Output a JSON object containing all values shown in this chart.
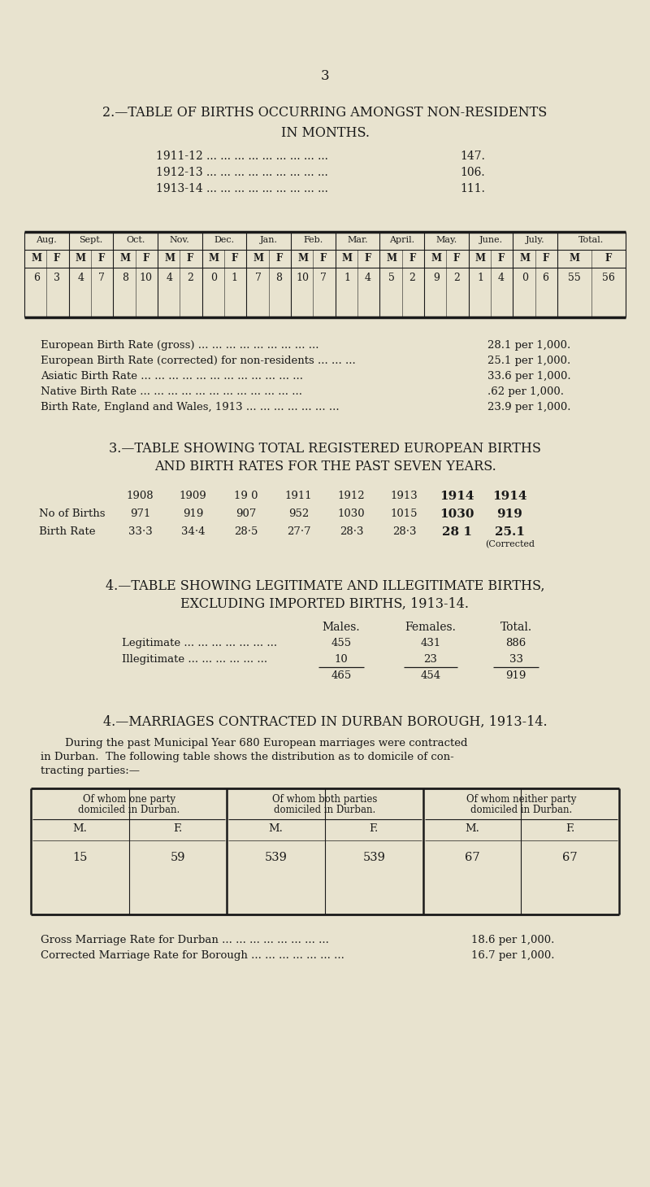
{
  "bg_color": "#e8e3cf",
  "text_color": "#1a1a1a",
  "page_number": "3",
  "section2_title1": "2.—TABLE OF BIRTHS OCCURRING AMONGST NON-RESIDENTS",
  "section2_title2": "IN MONTHS.",
  "years_list": [
    {
      "year": "1911-12 ... ... ... ... ... ... ... ... ...",
      "value": "147."
    },
    {
      "year": "1912-13 ... ... ... ... ... ... ... ... ...",
      "value": "106."
    },
    {
      "year": "1913-14 ... ... ... ... ... ... ... ... ...",
      "value": "111."
    }
  ],
  "table1_headers": [
    "Aug.",
    "Sept.",
    "Oct.",
    "Nov.",
    "Dec.",
    "Jan.",
    "Feb.",
    "Mar.",
    "April.",
    "May.",
    "June.",
    "July.",
    "Total."
  ],
  "table1_data": [
    "6",
    "3",
    "4",
    "7",
    "8",
    "10",
    "4",
    "2",
    "0",
    "1",
    "7",
    "8",
    "10",
    "7",
    "1",
    "4",
    "5",
    "2",
    "9",
    "2",
    "1",
    "4",
    "0",
    "6",
    "55",
    "56"
  ],
  "birth_rates": [
    {
      "label": "European Birth Rate (gross) ... ... ... ... ... ... ... ... ...",
      "value": "28.1 per 1,000."
    },
    {
      "label": "European Birth Rate (corrected) for non-residents ... ... ...",
      "value": "25.1 per 1,000."
    },
    {
      "label": "Asiatic Birth Rate ... ... ... ... ... ... ... ... ... ... ... ...",
      "value": "33.6 per 1,000."
    },
    {
      "label": "Native Birth Rate ... ... ... ... ... ... ... ... ... ... ... ...",
      "value": ".62 per 1,000."
    },
    {
      "label": "Birth Rate, England and Wales, 1913 ... ... ... ... ... ... ...",
      "value": "23.9 per 1,000."
    }
  ],
  "section3_title1": "3.—TABLE SHOWING TOTAL REGISTERED EUROPEAN BIRTHS",
  "section3_title2": "AND BIRTH RATES FOR THE PAST SEVEN YEARS.",
  "table2_years": [
    "1908",
    "1909",
    "19 0",
    "1911",
    "1912",
    "1913",
    "1914",
    "1914"
  ],
  "table2_births": [
    "971",
    "919",
    "907",
    "952",
    "1030",
    "1015",
    "1030",
    "919"
  ],
  "table2_rates": [
    "33·3",
    "34·4",
    "28·5",
    "27·7",
    "28·3",
    "28·3",
    "28 1",
    "25.1"
  ],
  "table2_corrected": "(Corrected",
  "section4a_title1": "4.—TABLE SHOWING LEGITIMATE AND ILLEGITIMATE BIRTHS,",
  "section4a_title2": "EXCLUDING IMPORTED BIRTHS, 1913-14.",
  "table3_rows": [
    [
      "Legitimate ... ... ... ... ... ... ...",
      "455",
      "431",
      "886"
    ],
    [
      "Illegitimate ... ... ... ... ... ...",
      "10",
      "23",
      "33"
    ],
    [
      "",
      "465",
      "454",
      "919"
    ]
  ],
  "section4b_title": "4.—MARRIAGES CONTRACTED IN DURBAN BOROUGH, 1913-14.",
  "section4b_text1": "During the past Municipal Year 680 European marriages were contracted",
  "section4b_text2": "in Durban.  The following table shows the distribution as to domicile of con-",
  "section4b_text3": "tracting parties:—",
  "table4_col_headers": [
    "Of whom one party\ndomiciled in Durban.",
    "Of whom both parties\ndomiciled in Durban.",
    "Of whom neither party\ndomiciled in Durban."
  ],
  "table4_mf_headers": [
    "M.",
    "F.",
    "M.",
    "F.",
    "M.",
    "F."
  ],
  "table4_data": [
    "15",
    "59",
    "539",
    "539",
    "67",
    "67"
  ],
  "marriage_rates": [
    {
      "label": "Gross Marriage Rate for Durban ... ... ... ... ... ... ... ...",
      "value": "18.6 per 1,000."
    },
    {
      "label": "Corrected Marriage Rate for Borough ... ... ... ... ... ... ...",
      "value": "16.7 per 1,000."
    }
  ]
}
